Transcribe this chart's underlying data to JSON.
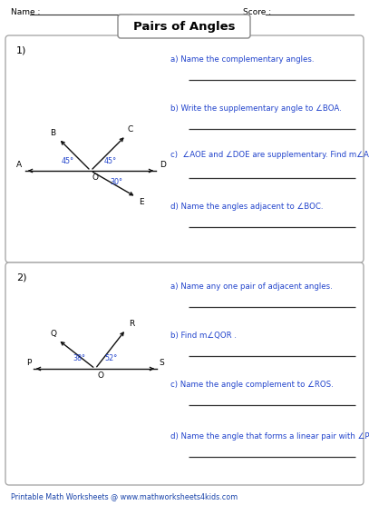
{
  "title": "Pairs of Angles",
  "name_label": "Name :",
  "score_label": "Score :",
  "footer": "Printable Math Worksheets @ www.mathworksheets4kids.com",
  "bg_color": "#ffffff",
  "text_color": "#000000",
  "blue_color": "#2244cc",
  "red_color": "#cc2200",
  "line_color": "#111111",
  "answer_line_color": "#333333",
  "q1_label": "1)",
  "q2_label": "2)",
  "q1_questions": [
    "a) Name the complementary angles.",
    "b) Write the supplementary angle to ∠BOA.",
    "c)  ∠AOE and ∠DOE are supplementary. Find m∠AOE.",
    "d) Name the angles adjacent to ∠BOC."
  ],
  "q2_questions": [
    "a) Name any one pair of adjacent angles.",
    "b) Find m∠QOR .",
    "c) Name the angle complement to ∠ROS.",
    "d) Name the angle that forms a linear pair with ∠POQ."
  ]
}
